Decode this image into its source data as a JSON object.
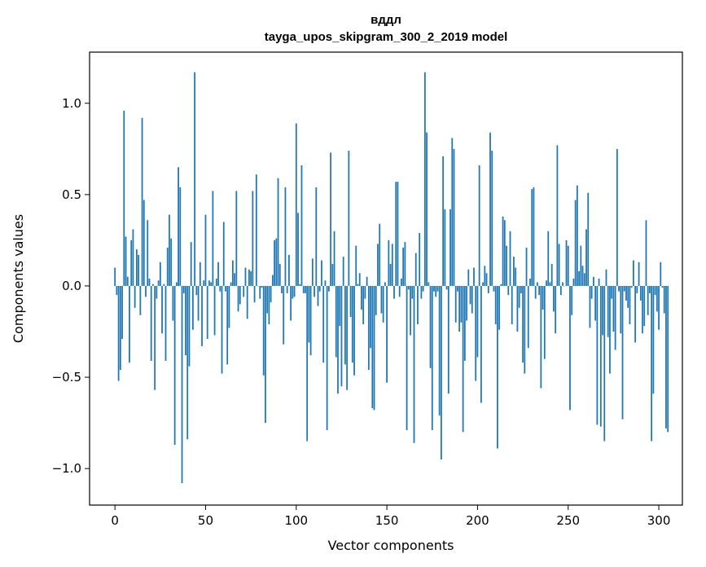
{
  "chart_data": {
    "type": "bar",
    "title_lines": [
      "вддл",
      "tayga_upos_skipgram_300_2_2019 model"
    ],
    "xlabel": "Vector components",
    "ylabel": "Components values",
    "xlim": [
      -14,
      313
    ],
    "ylim": [
      -1.2,
      1.28
    ],
    "xticks": [
      {
        "value": 0,
        "label": "0"
      },
      {
        "value": 50,
        "label": "50"
      },
      {
        "value": 100,
        "label": "100"
      },
      {
        "value": 150,
        "label": "150"
      },
      {
        "value": 200,
        "label": "200"
      },
      {
        "value": 250,
        "label": "250"
      },
      {
        "value": 300,
        "label": "300"
      }
    ],
    "yticks": [
      {
        "value": -1.0,
        "label": "−1.0"
      },
      {
        "value": -0.5,
        "label": "−0.5"
      },
      {
        "value": 0.0,
        "label": "0.0"
      },
      {
        "value": 0.5,
        "label": "0.5"
      },
      {
        "value": 1.0,
        "label": "1.0"
      }
    ],
    "grid": false,
    "bar_color": "#1f77b4",
    "values": [
      0.1,
      -0.05,
      -0.52,
      -0.46,
      -0.29,
      0.96,
      0.27,
      0.05,
      -0.42,
      0.25,
      0.31,
      -0.12,
      0.2,
      0.17,
      -0.16,
      0.92,
      0.47,
      -0.06,
      0.36,
      0.04,
      -0.41,
      0.01,
      -0.57,
      -0.07,
      0.03,
      0.13,
      -0.26,
      0.01,
      -0.41,
      0.21,
      0.39,
      0.26,
      -0.19,
      -0.87,
      0.02,
      0.65,
      0.54,
      -1.08,
      -0.04,
      -0.38,
      -0.84,
      -0.44,
      0.24,
      -0.24,
      1.17,
      -0.05,
      -0.19,
      0.13,
      -0.33,
      0.03,
      0.39,
      -0.29,
      0.03,
      0.02,
      0.52,
      -0.27,
      0.04,
      0.13,
      -0.03,
      -0.48,
      0.35,
      -0.03,
      -0.43,
      -0.23,
      0.02,
      0.14,
      0.07,
      0.52,
      -0.14,
      -0.1,
      0.0,
      -0.06,
      0.1,
      -0.18,
      0.09,
      0.08,
      0.52,
      -0.09,
      0.61,
      0.0,
      -0.07,
      -0.01,
      -0.49,
      -0.75,
      -0.15,
      -0.21,
      -0.09,
      0.06,
      0.25,
      0.26,
      0.59,
      0.12,
      -0.04,
      -0.32,
      0.54,
      -0.04,
      0.17,
      -0.19,
      -0.07,
      -0.06,
      0.89,
      0.4,
      0.01,
      0.66,
      -0.04,
      -0.04,
      -0.85,
      -0.31,
      -0.38,
      0.15,
      -0.06,
      0.54,
      -0.11,
      -0.03,
      0.14,
      -0.42,
      0.03,
      -0.79,
      -0.03,
      0.73,
      0.12,
      0.3,
      -0.39,
      -0.59,
      -0.22,
      -0.55,
      0.16,
      -0.43,
      -0.57,
      0.74,
      -0.17,
      -0.42,
      -0.49,
      0.22,
      0.01,
      0.07,
      -0.13,
      -0.21,
      -0.07,
      0.05,
      -0.46,
      -0.34,
      -0.67,
      -0.68,
      -0.16,
      0.23,
      0.34,
      -0.15,
      -0.2,
      0.02,
      -0.53,
      0.25,
      0.12,
      0.23,
      -0.07,
      0.57,
      0.57,
      -0.06,
      0.04,
      0.21,
      0.24,
      -0.79,
      -0.02,
      -0.27,
      -0.07,
      -0.86,
      0.18,
      -0.21,
      0.29,
      -0.07,
      -0.03,
      1.17,
      0.84,
      0.02,
      -0.45,
      -0.79,
      -0.03,
      -0.06,
      -0.03,
      -0.71,
      -0.95,
      0.71,
      0.42,
      -0.02,
      -0.59,
      0.42,
      0.81,
      0.75,
      -0.2,
      -0.03,
      -0.25,
      -0.2,
      -0.8,
      -0.41,
      -0.19,
      0.09,
      -0.1,
      -0.15,
      0.1,
      -0.52,
      -0.39,
      0.66,
      -0.64,
      0.02,
      0.11,
      0.07,
      -0.04,
      0.84,
      0.74,
      -0.03,
      -0.21,
      -0.89,
      -0.24,
      0.01,
      0.38,
      0.36,
      0.22,
      -0.05,
      0.3,
      -0.21,
      0.16,
      0.1,
      -0.25,
      -0.12,
      -0.04,
      -0.42,
      -0.48,
      0.21,
      -0.34,
      0.04,
      0.53,
      0.54,
      -0.07,
      0.02,
      -0.05,
      -0.56,
      -0.13,
      -0.4,
      0.03,
      0.3,
      0.02,
      0.12,
      -0.14,
      -0.26,
      0.77,
      0.23,
      -0.05,
      0.02,
      0.0,
      0.25,
      0.22,
      -0.68,
      -0.16,
      0.04,
      0.47,
      0.55,
      0.08,
      0.22,
      0.11,
      0.07,
      0.31,
      0.51,
      -0.23,
      -0.07,
      0.05,
      -0.19,
      -0.76,
      0.04,
      -0.77,
      -0.27,
      -0.85,
      0.09,
      -0.28,
      -0.48,
      -0.07,
      -0.25,
      -0.35,
      0.75,
      -0.03,
      -0.26,
      -0.73,
      -0.03,
      -0.08,
      -0.12,
      -0.21,
      -0.01,
      0.14,
      -0.31,
      -0.04,
      0.13,
      -0.08,
      -0.26,
      -0.22,
      0.36,
      -0.16,
      -0.04,
      -0.85,
      -0.59,
      -0.05,
      -0.14,
      -0.24,
      0.13,
      -0.01,
      -0.15,
      -0.78,
      -0.8
    ]
  }
}
